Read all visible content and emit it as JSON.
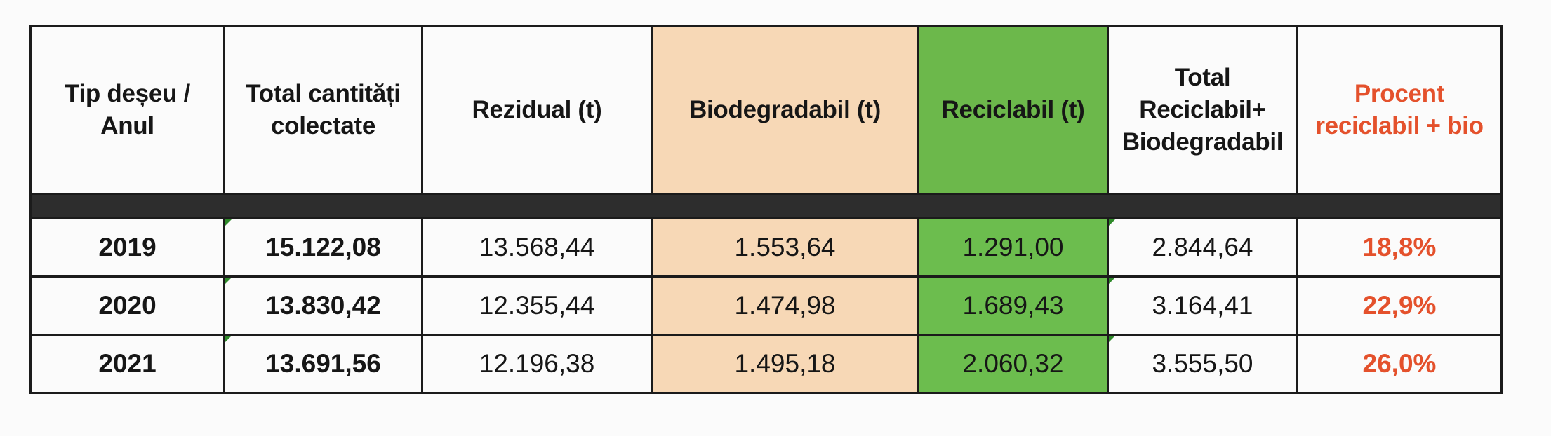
{
  "table": {
    "headers": [
      "Tip deșeu / Anul",
      "Total cantități colectate",
      "Rezidual (t)",
      "Biodegradabil (t)",
      "Reciclabil (t)",
      "Total Reciclabil+ Biodegradabil",
      "Procent reciclabil + bio"
    ],
    "rows": [
      {
        "year": "2019",
        "total": "15.122,08",
        "rezidual": "13.568,44",
        "biodegradabil": "1.553,64",
        "reciclabil": "1.291,00",
        "total_rec_bio": "2.844,64",
        "procent": "18,8%"
      },
      {
        "year": "2020",
        "total": "13.830,42",
        "rezidual": "12.355,44",
        "biodegradabil": "1.474,98",
        "reciclabil": "1.689,43",
        "total_rec_bio": "3.164,41",
        "procent": "22,9%"
      },
      {
        "year": "2021",
        "total": "13.691,56",
        "rezidual": "12.196,38",
        "biodegradabil": "1.495,18",
        "reciclabil": "2.060,32",
        "total_rec_bio": "3.555,50",
        "procent": "26,0%"
      }
    ]
  },
  "colors": {
    "biodegradabil_fill": "#f7d8b6",
    "reciclabil_fill": "#6cbd4e",
    "procent_text": "#e4512c",
    "separator": "#2d2d2d"
  }
}
